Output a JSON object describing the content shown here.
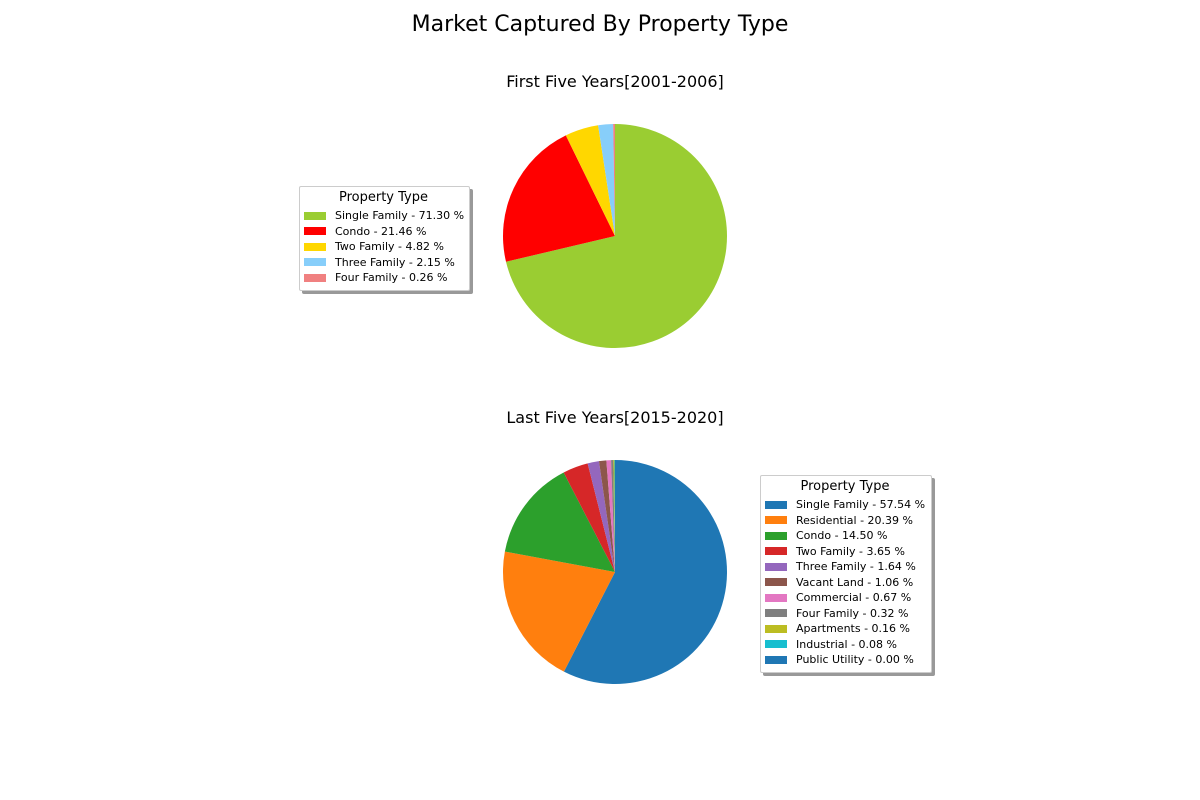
{
  "figure": {
    "title": "Market Captured By Property Type"
  },
  "chart_data": [
    {
      "type": "pie",
      "title": "First Five Years[2001-2006]",
      "legend_title": "Property Type",
      "legend_position": "left",
      "start_angle_deg": 90,
      "direction": "clockwise",
      "slices": [
        {
          "label": "Single Family - 71.30 %",
          "name": "Single Family",
          "value": 71.3,
          "color": "#9acd32"
        },
        {
          "label": "Condo - 21.46 %",
          "name": "Condo",
          "value": 21.46,
          "color": "#ff0000"
        },
        {
          "label": "Two Family - 4.82 %",
          "name": "Two Family",
          "value": 4.82,
          "color": "#ffd700"
        },
        {
          "label": "Three Family - 2.15 %",
          "name": "Three Family",
          "value": 2.15,
          "color": "#87cefa"
        },
        {
          "label": "Four Family - 0.26 %",
          "name": "Four Family",
          "value": 0.26,
          "color": "#f08080"
        }
      ]
    },
    {
      "type": "pie",
      "title": "Last Five Years[2015-2020]",
      "legend_title": "Property Type",
      "legend_position": "right",
      "start_angle_deg": 90,
      "direction": "clockwise",
      "slices": [
        {
          "label": "Single Family - 57.54 %",
          "name": "Single Family",
          "value": 57.54,
          "color": "#1f77b4"
        },
        {
          "label": "Residential - 20.39 %",
          "name": "Residential",
          "value": 20.39,
          "color": "#ff7f0e"
        },
        {
          "label": "Condo - 14.50 %",
          "name": "Condo",
          "value": 14.5,
          "color": "#2ca02c"
        },
        {
          "label": "Two Family - 3.65 %",
          "name": "Two Family",
          "value": 3.65,
          "color": "#d62728"
        },
        {
          "label": "Three Family - 1.64 %",
          "name": "Three Family",
          "value": 1.64,
          "color": "#9467bd"
        },
        {
          "label": "Vacant Land - 1.06 %",
          "name": "Vacant Land",
          "value": 1.06,
          "color": "#8c564b"
        },
        {
          "label": "Commercial - 0.67 %",
          "name": "Commercial",
          "value": 0.67,
          "color": "#e377c2"
        },
        {
          "label": "Four Family - 0.32 %",
          "name": "Four Family",
          "value": 0.32,
          "color": "#7f7f7f"
        },
        {
          "label": "Apartments - 0.16 %",
          "name": "Apartments",
          "value": 0.16,
          "color": "#bcbd22"
        },
        {
          "label": "Industrial - 0.08 %",
          "name": "Industrial",
          "value": 0.08,
          "color": "#17becf"
        },
        {
          "label": "Public Utility - 0.00 %",
          "name": "Public Utility",
          "value": 0.0,
          "color": "#1f77b4"
        }
      ]
    }
  ]
}
